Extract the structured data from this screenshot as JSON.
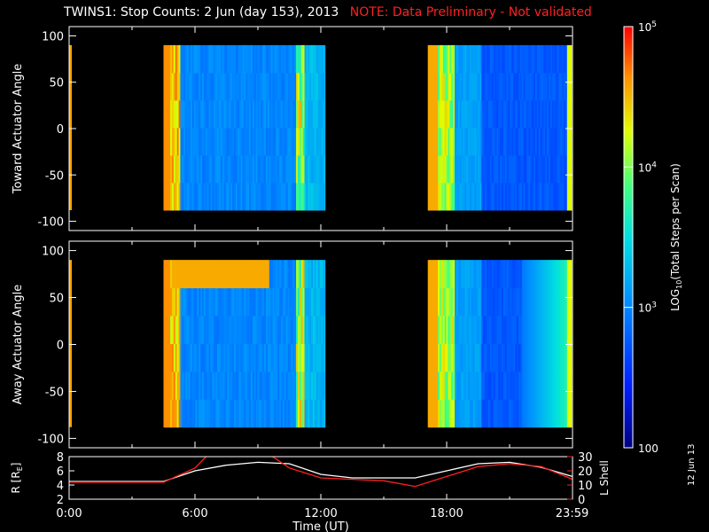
{
  "title": {
    "main": "TWINS1: Stop Counts:  2 Jun (day 153), 2013",
    "note": "NOTE: Data Preliminary - Not validated",
    "note_color": "#ff2020"
  },
  "side_stamp": "12 Jun 13",
  "chart_data": [
    {
      "type": "heatmap",
      "panel": "toward",
      "ylabel": "Toward Actuator Angle",
      "ylim": [
        -110,
        110
      ],
      "yticks": [
        100,
        50,
        0,
        -50,
        -100
      ],
      "x_range_hours": [
        0,
        24
      ],
      "data_intervals_hours": [
        [
          4.5,
          12.2
        ],
        [
          17.1,
          23.95
        ]
      ],
      "angle_range": [
        -88,
        90
      ],
      "grid": false
    },
    {
      "type": "heatmap",
      "panel": "away",
      "ylabel": "Away Actuator Angle",
      "ylim": [
        -110,
        110
      ],
      "yticks": [
        100,
        50,
        0,
        -50,
        -100
      ],
      "x_range_hours": [
        0,
        24
      ],
      "data_intervals_hours": [
        [
          4.5,
          12.2
        ],
        [
          17.1,
          23.95
        ]
      ],
      "angle_range": [
        -88,
        90
      ],
      "grid": false
    },
    {
      "type": "line",
      "panel": "ephemeris",
      "ylabel_left": "R [R",
      "ylabel_left_sub": "E",
      "ylabel_left_end": "]",
      "ylabel_right": "L Shell",
      "ylim_left": [
        2,
        8
      ],
      "yticks_left": [
        8,
        6,
        4,
        2
      ],
      "ylim_right": [
        0,
        30
      ],
      "yticks_right": [
        30,
        20,
        10,
        0
      ],
      "xlabel": "Time (UT)",
      "xticks": [
        {
          "h": 0,
          "label": "0:00"
        },
        {
          "h": 6,
          "label": "6:00"
        },
        {
          "h": 12,
          "label": "12:00"
        },
        {
          "h": 18,
          "label": "18:00"
        },
        {
          "h": 23.98,
          "label": "23:59"
        }
      ],
      "series": [
        {
          "axis": "left",
          "color": "#ffffff",
          "x": [
            0,
            4.5,
            6,
            7.5,
            9,
            10.5,
            12,
            13.5,
            15,
            16.5,
            18,
            19.5,
            21,
            22.5,
            24
          ],
          "y": [
            4.5,
            4.5,
            6.0,
            6.8,
            7.2,
            7.0,
            5.5,
            5.0,
            5.0,
            5.0,
            6.0,
            7.0,
            7.2,
            6.5,
            5.2
          ]
        },
        {
          "axis": "right",
          "color": "#ff2020",
          "x": [
            0,
            4.5,
            6,
            6.6,
            9.6,
            10.5,
            12,
            13.5,
            15,
            16.5,
            18,
            19.5,
            21,
            22.5,
            24
          ],
          "y": [
            12,
            12,
            22,
            31,
            31,
            22,
            15,
            14,
            13,
            9,
            16,
            23,
            25,
            23,
            14
          ]
        }
      ]
    }
  ],
  "colorbar": {
    "title": "LOG",
    "title_sub": "10",
    "title_end": "(Total Steps per Scan)",
    "tick_labels": [
      {
        "base": "10",
        "exp": "5"
      },
      {
        "base": "10",
        "exp": "4"
      },
      {
        "base": "10",
        "exp": "3"
      },
      {
        "base": "100",
        "exp": ""
      }
    ],
    "range_log10": [
      2,
      5
    ]
  }
}
